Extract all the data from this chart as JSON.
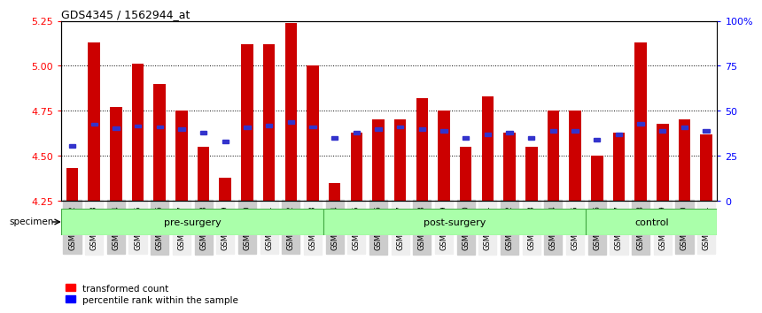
{
  "title": "GDS4345 / 1562944_at",
  "samples": [
    "GSM842012",
    "GSM842013",
    "GSM842014",
    "GSM842015",
    "GSM842016",
    "GSM842017",
    "GSM842018",
    "GSM842019",
    "GSM842020",
    "GSM842021",
    "GSM842022",
    "GSM842023",
    "GSM842024",
    "GSM842025",
    "GSM842026",
    "GSM842027",
    "GSM842028",
    "GSM842029",
    "GSM842030",
    "GSM842031",
    "GSM842032",
    "GSM842033",
    "GSM842034",
    "GSM842035",
    "GSM842036",
    "GSM842037",
    "GSM842038",
    "GSM842039",
    "GSM842040",
    "GSM842041"
  ],
  "red_values": [
    4.43,
    5.13,
    4.77,
    5.01,
    4.9,
    4.75,
    4.55,
    4.38,
    5.12,
    5.12,
    5.24,
    5.0,
    4.35,
    4.63,
    4.7,
    4.7,
    4.82,
    4.75,
    4.55,
    4.83,
    4.63,
    4.55,
    4.75,
    4.75,
    4.5,
    4.63,
    5.13,
    4.68,
    4.7,
    4.62
  ],
  "blue_values": [
    4.555,
    4.675,
    4.652,
    4.665,
    4.66,
    4.648,
    4.63,
    4.578,
    4.658,
    4.668,
    4.688,
    4.66,
    4.598,
    4.628,
    4.648,
    4.66,
    4.648,
    4.638,
    4.6,
    4.618,
    4.628,
    4.6,
    4.638,
    4.638,
    4.59,
    4.618,
    4.678,
    4.638,
    4.658,
    4.638
  ],
  "groups": [
    {
      "label": "pre-surgery",
      "start": 0,
      "end": 12
    },
    {
      "label": "post-surgery",
      "start": 12,
      "end": 24
    },
    {
      "label": "control",
      "start": 24,
      "end": 30
    }
  ],
  "ymin": 4.25,
  "ymax": 5.25,
  "yticks": [
    4.25,
    4.5,
    4.75,
    5.0,
    5.25
  ],
  "grid_lines": [
    4.5,
    4.75,
    5.0
  ],
  "right_ytick_pcts": [
    0,
    25,
    50,
    75,
    100
  ],
  "right_ytick_labels": [
    "0",
    "25",
    "50",
    "75",
    "100%"
  ],
  "bar_color": "#CC0000",
  "blue_color": "#3333CC",
  "bar_width": 0.55,
  "group_fill": "#AAFFAA",
  "group_edge": "#44AA44",
  "alt_tick_bg": "#CCCCCC",
  "tick_fontsize": 6.0,
  "legend_fontsize": 7.5,
  "title_fontsize": 9
}
